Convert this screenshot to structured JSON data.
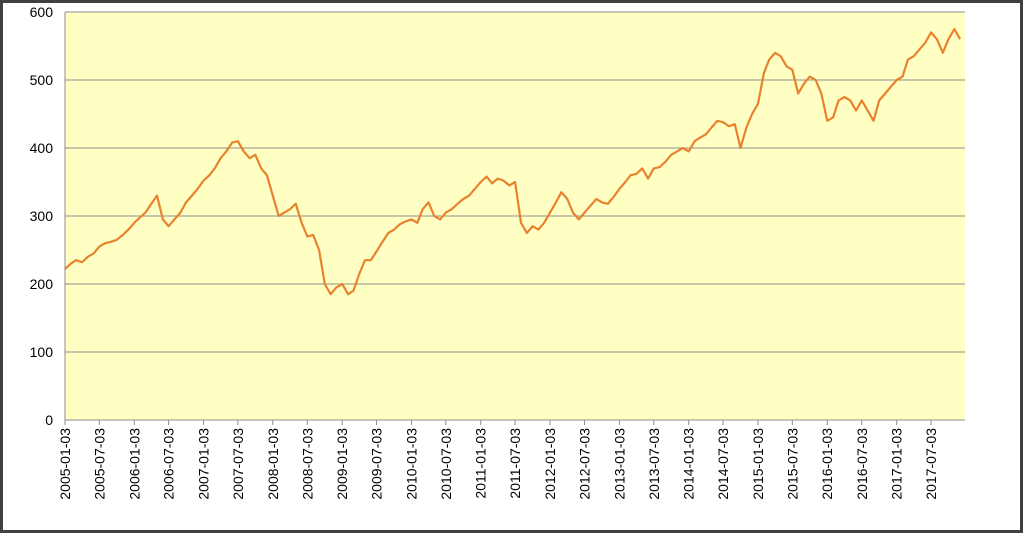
{
  "chart_data": {
    "type": "line",
    "x": [
      "2005-01-03",
      "2005-02-03",
      "2005-03-03",
      "2005-04-03",
      "2005-05-03",
      "2005-06-03",
      "2005-07-03",
      "2005-08-03",
      "2005-09-03",
      "2005-10-03",
      "2005-11-03",
      "2005-12-03",
      "2006-01-03",
      "2006-02-03",
      "2006-03-03",
      "2006-04-03",
      "2006-05-03",
      "2006-06-03",
      "2006-07-03",
      "2006-08-03",
      "2006-09-03",
      "2006-10-03",
      "2006-11-03",
      "2006-12-03",
      "2007-01-03",
      "2007-02-03",
      "2007-03-03",
      "2007-04-03",
      "2007-05-03",
      "2007-06-03",
      "2007-07-03",
      "2007-08-03",
      "2007-09-03",
      "2007-10-03",
      "2007-11-03",
      "2007-12-03",
      "2008-01-03",
      "2008-02-03",
      "2008-03-03",
      "2008-04-03",
      "2008-05-03",
      "2008-06-03",
      "2008-07-03",
      "2008-08-03",
      "2008-09-03",
      "2008-10-03",
      "2008-11-03",
      "2008-12-03",
      "2009-01-03",
      "2009-02-03",
      "2009-03-03",
      "2009-04-03",
      "2009-05-03",
      "2009-06-03",
      "2009-07-03",
      "2009-08-03",
      "2009-09-03",
      "2009-10-03",
      "2009-11-03",
      "2009-12-03",
      "2010-01-03",
      "2010-02-03",
      "2010-03-03",
      "2010-04-03",
      "2010-05-03",
      "2010-06-03",
      "2010-07-03",
      "2010-08-03",
      "2010-09-03",
      "2010-10-03",
      "2010-11-03",
      "2010-12-03",
      "2011-01-03",
      "2011-02-03",
      "2011-03-03",
      "2011-04-03",
      "2011-05-03",
      "2011-06-03",
      "2011-07-03",
      "2011-08-03",
      "2011-09-03",
      "2011-10-03",
      "2011-11-03",
      "2011-12-03",
      "2012-01-03",
      "2012-02-03",
      "2012-03-03",
      "2012-04-03",
      "2012-05-03",
      "2012-06-03",
      "2012-07-03",
      "2012-08-03",
      "2012-09-03",
      "2012-10-03",
      "2012-11-03",
      "2012-12-03",
      "2013-01-03",
      "2013-02-03",
      "2013-03-03",
      "2013-04-03",
      "2013-05-03",
      "2013-06-03",
      "2013-07-03",
      "2013-08-03",
      "2013-09-03",
      "2013-10-03",
      "2013-11-03",
      "2013-12-03",
      "2014-01-03",
      "2014-02-03",
      "2014-03-03",
      "2014-04-03",
      "2014-05-03",
      "2014-06-03",
      "2014-07-03",
      "2014-08-03",
      "2014-09-03",
      "2014-10-03",
      "2014-11-03",
      "2014-12-03",
      "2015-01-03",
      "2015-02-03",
      "2015-03-03",
      "2015-04-03",
      "2015-05-03",
      "2015-06-03",
      "2015-07-03",
      "2015-08-03",
      "2015-09-03",
      "2015-10-03",
      "2015-11-03",
      "2015-12-03",
      "2016-01-03",
      "2016-02-03",
      "2016-03-03",
      "2016-04-03",
      "2016-05-03",
      "2016-06-03",
      "2016-07-03",
      "2016-08-03",
      "2016-09-03",
      "2016-10-03",
      "2016-11-03",
      "2016-12-03",
      "2017-01-03",
      "2017-02-03",
      "2017-03-03",
      "2017-04-03",
      "2017-05-03",
      "2017-06-03",
      "2017-07-03",
      "2017-08-03",
      "2017-09-03",
      "2017-10-03",
      "2017-11-03",
      "2017-12-03"
    ],
    "series": [
      {
        "color": "#e8822d",
        "values": [
          222,
          230,
          235,
          232,
          240,
          245,
          255,
          260,
          262,
          265,
          272,
          280,
          290,
          298,
          305,
          318,
          330,
          295,
          285,
          295,
          305,
          320,
          330,
          340,
          352,
          360,
          370,
          385,
          395,
          408,
          410,
          395,
          385,
          390,
          370,
          360,
          330,
          300,
          305,
          310,
          318,
          290,
          270,
          272,
          250,
          200,
          185,
          195,
          200,
          185,
          190,
          215,
          235,
          235,
          248,
          262,
          275,
          280,
          288,
          292,
          295,
          290,
          310,
          320,
          300,
          295,
          305,
          310,
          318,
          325,
          330,
          340,
          350,
          358,
          348,
          355,
          352,
          345,
          350,
          290,
          275,
          285,
          280,
          290,
          305,
          320,
          335,
          325,
          305,
          295,
          305,
          315,
          325,
          320,
          318,
          328,
          340,
          350,
          360,
          362,
          370,
          355,
          370,
          372,
          380,
          390,
          395,
          400,
          395,
          410,
          415,
          420,
          430,
          440,
          438,
          432,
          435,
          400,
          430,
          450,
          465,
          510,
          530,
          540,
          535,
          520,
          515,
          480,
          495,
          505,
          500,
          480,
          440,
          445,
          470,
          475,
          470,
          455,
          470,
          455,
          440,
          470,
          480,
          490,
          500,
          505,
          530,
          535,
          545,
          555,
          570,
          560,
          540,
          560,
          575,
          560
        ]
      }
    ],
    "xlim": [
      "2005-01-03",
      "2017-12-29"
    ],
    "xticks": [
      "2005-01-03",
      "2005-07-03",
      "2006-01-03",
      "2006-07-03",
      "2007-01-03",
      "2007-07-03",
      "2008-01-03",
      "2008-07-03",
      "2009-01-03",
      "2009-07-03",
      "2010-01-03",
      "2010-07-03",
      "2011-01-03",
      "2011-07-03",
      "2012-01-03",
      "2012-07-03",
      "2013-01-03",
      "2013-07-03",
      "2014-01-03",
      "2014-07-03",
      "2015-01-03",
      "2015-07-03",
      "2016-01-03",
      "2016-07-03",
      "2017-01-03",
      "2017-07-03"
    ],
    "ylim": [
      0,
      600
    ],
    "yticks": [
      0,
      100,
      200,
      300,
      400,
      500,
      600
    ],
    "grid": true
  }
}
